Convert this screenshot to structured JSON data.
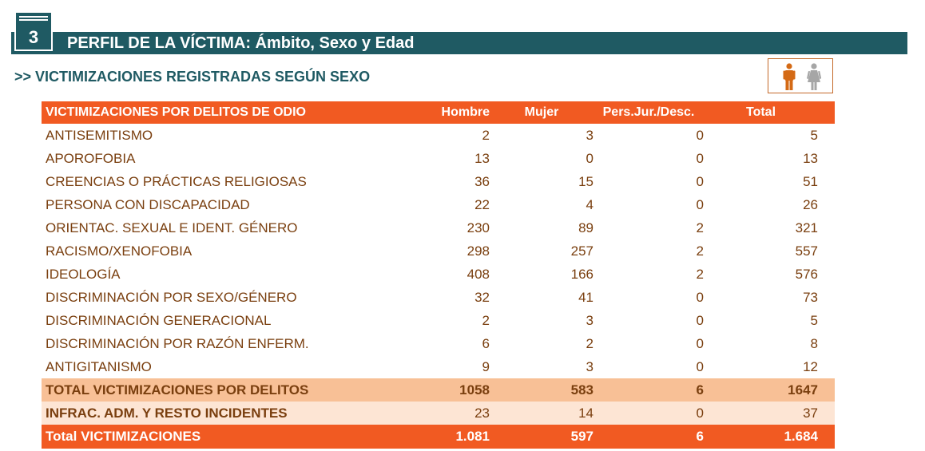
{
  "section": {
    "number": "3",
    "title": "PERFIL DE LA VÍCTIMA: Ámbito, Sexo y Edad"
  },
  "subtitle": ">> VICTIMIZACIONES REGISTRADAS SEGÚN SEXO",
  "icons": [
    "man-icon",
    "woman-icon"
  ],
  "colors": {
    "header_band": "#1f5a63",
    "accent": "#f15a22",
    "total_row": "#f8c096",
    "infrac_row": "#fde5d4",
    "text": "#7a3f0f"
  },
  "table": {
    "headers": [
      "VICTIMIZACIONES POR DELITOS DE ODIO",
      "Hombre",
      "Mujer",
      "Pers.Jur./Desc.",
      "Total"
    ],
    "rows": [
      [
        "ANTISEMITISMO",
        "2",
        "3",
        "0",
        "5"
      ],
      [
        "APOROFOBIA",
        "13",
        "0",
        "0",
        "13"
      ],
      [
        "CREENCIAS O PRÁCTICAS RELIGIOSAS",
        "36",
        "15",
        "0",
        "51"
      ],
      [
        "PERSONA CON DISCAPACIDAD",
        "22",
        "4",
        "0",
        "26"
      ],
      [
        "ORIENTAC. SEXUAL E IDENT. GÉNERO",
        "230",
        "89",
        "2",
        "321"
      ],
      [
        "RACISMO/XENOFOBIA",
        "298",
        "257",
        "2",
        "557"
      ],
      [
        "IDEOLOGÍA",
        "408",
        "166",
        "2",
        "576"
      ],
      [
        "DISCRIMINACIÓN POR SEXO/GÉNERO",
        "32",
        "41",
        "0",
        "73"
      ],
      [
        "DISCRIMINACIÓN GENERACIONAL",
        "2",
        "3",
        "0",
        "5"
      ],
      [
        "DISCRIMINACIÓN POR RAZÓN ENFERM.",
        "6",
        "2",
        "0",
        "8"
      ],
      [
        "ANTIGITANISMO",
        "9",
        "3",
        "0",
        "12"
      ]
    ],
    "total_delitos": [
      "TOTAL VICTIMIZACIONES POR DELITOS",
      "1058",
      "583",
      "6",
      "1647"
    ],
    "infrac": [
      "INFRAC. ADM. Y RESTO INCIDENTES",
      "23",
      "14",
      "0",
      "37"
    ],
    "grand_total": [
      "Total VICTIMIZACIONES",
      "1.081",
      "597",
      "6",
      "1.684"
    ]
  }
}
